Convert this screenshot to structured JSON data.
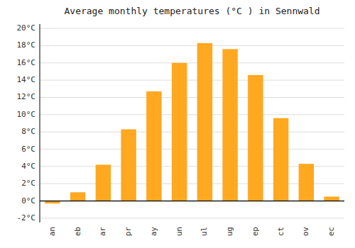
{
  "chart_data": {
    "type": "bar",
    "title": "Average monthly temperatures (°C ) in Sennwald",
    "categories": [
      "an",
      "eb",
      "ar",
      "pr",
      "ay",
      "un",
      "ul",
      "ug",
      "ep",
      "ct",
      "ov",
      "ec"
    ],
    "values": [
      -0.3,
      1.0,
      4.2,
      8.3,
      12.7,
      16.0,
      18.3,
      17.6,
      14.6,
      9.6,
      4.3,
      0.5
    ],
    "color": "#FFA820",
    "ylim": [
      -2.5,
      20.5
    ],
    "yticks": [
      {
        "value": -2,
        "label": "-2°C"
      },
      {
        "value": 0,
        "label": "0°C"
      },
      {
        "value": 2,
        "label": "2°C"
      },
      {
        "value": 4,
        "label": "4°C"
      },
      {
        "value": 6,
        "label": "6°C"
      },
      {
        "value": 8,
        "label": "8°C"
      },
      {
        "value": 10,
        "label": "10°C"
      },
      {
        "value": 12,
        "label": "12°C"
      },
      {
        "value": 14,
        "label": "14°C"
      },
      {
        "value": 16,
        "label": "16°C"
      },
      {
        "value": 18,
        "label": "18°C"
      },
      {
        "value": 20,
        "label": "20°C"
      }
    ],
    "grid": true
  }
}
